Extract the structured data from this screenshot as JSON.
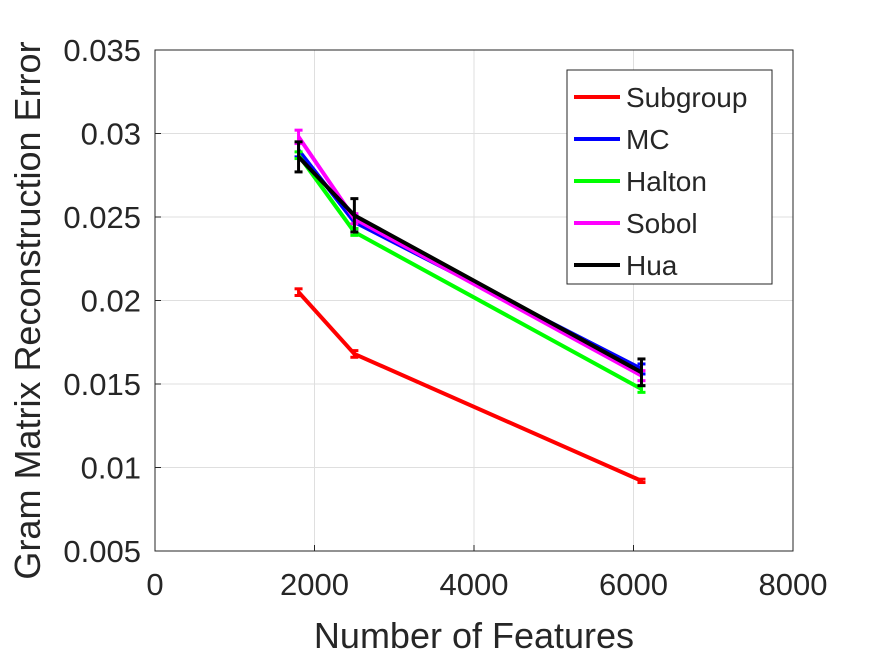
{
  "chart_data": {
    "type": "line",
    "title": "",
    "xlabel": "Number of Features",
    "ylabel": "Gram Matrix Reconstruction Error",
    "xlim": [
      0,
      8000
    ],
    "ylim": [
      0.005,
      0.035
    ],
    "xticks": [
      0,
      2000,
      4000,
      6000,
      8000
    ],
    "xtick_labels": [
      "0",
      "2000",
      "4000",
      "6000",
      "8000"
    ],
    "yticks": [
      0.005,
      0.01,
      0.015,
      0.02,
      0.025,
      0.03,
      0.035
    ],
    "ytick_labels": [
      "0.005",
      "0.01",
      "0.015",
      "0.02",
      "0.025",
      "0.03",
      "0.035"
    ],
    "grid": true,
    "legend_position": "top-right",
    "x": [
      1800,
      2500,
      6100
    ],
    "series": [
      {
        "name": "Subgroup",
        "color": "#ff0000",
        "values": [
          0.0205,
          0.0168,
          0.0092
        ],
        "errors": [
          0.0002,
          0.0002,
          0.0001
        ]
      },
      {
        "name": "MC",
        "color": "#0000ff",
        "values": [
          0.029,
          0.0247,
          0.0159
        ],
        "errors": [
          0.0004,
          0.0004,
          0.0003
        ]
      },
      {
        "name": "Halton",
        "color": "#00ff00",
        "values": [
          0.0287,
          0.0241,
          0.0147
        ],
        "errors": [
          0.0002,
          0.0002,
          0.0002
        ]
      },
      {
        "name": "Sobol",
        "color": "#ff00ff",
        "values": [
          0.0298,
          0.0249,
          0.0155
        ],
        "errors": [
          0.0004,
          0.0003,
          0.0003
        ]
      },
      {
        "name": "Hua",
        "color": "#000000",
        "values": [
          0.0286,
          0.0251,
          0.0157
        ],
        "errors": [
          0.0009,
          0.001,
          0.0008
        ]
      }
    ]
  }
}
